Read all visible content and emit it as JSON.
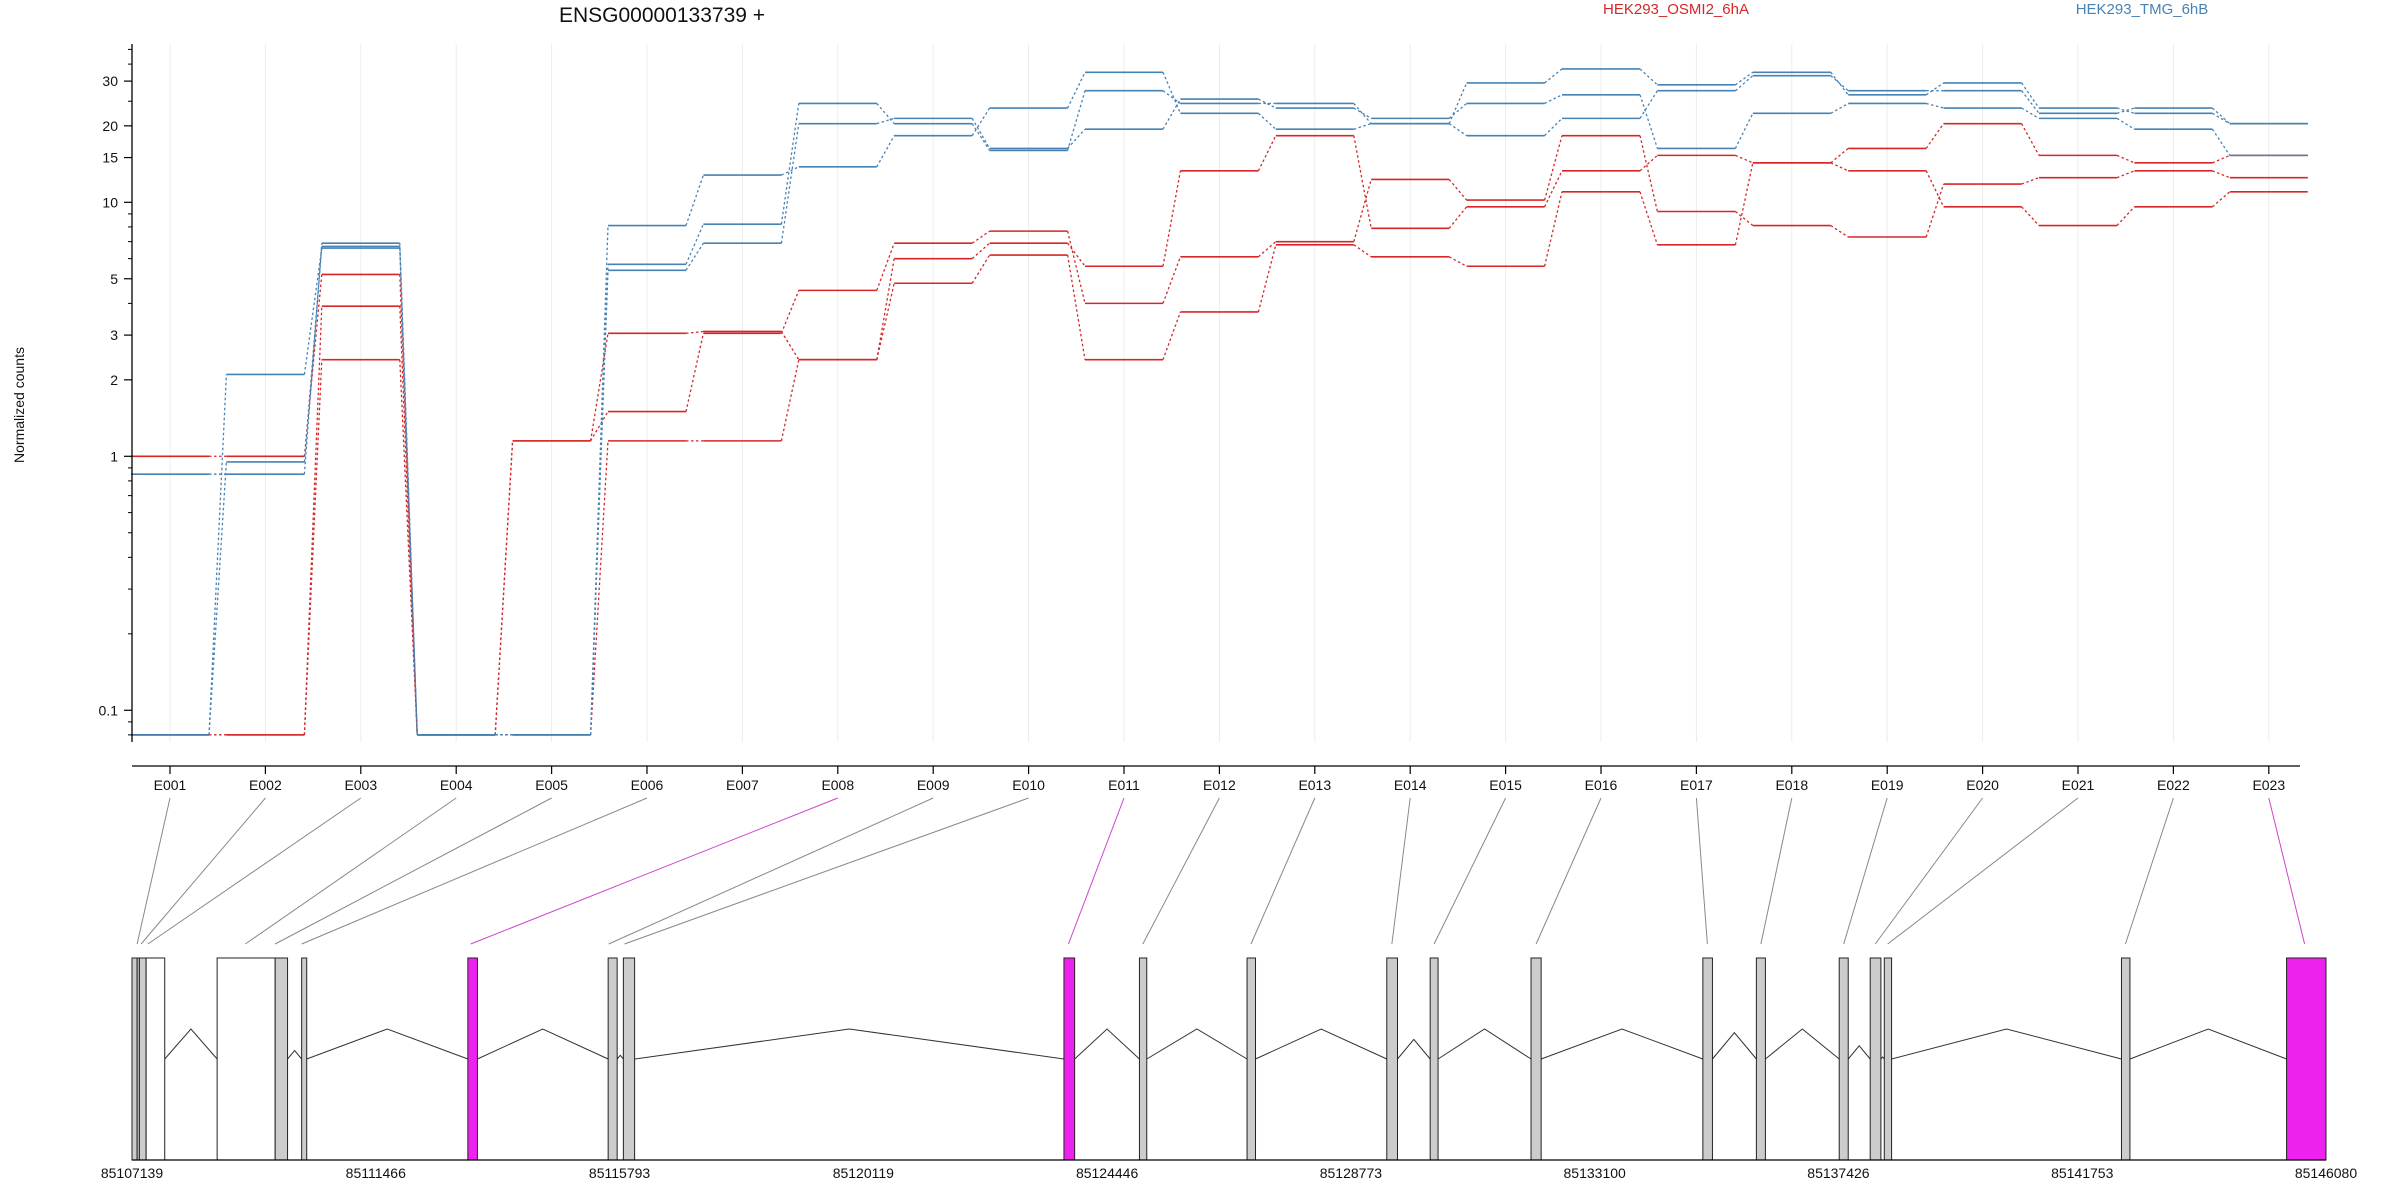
{
  "chart_data": {
    "type": "line",
    "title": "ENSG00000133739 +",
    "ylabel": "Normalized counts",
    "yscale": "log",
    "ylim": [
      0.075,
      42
    ],
    "yticks": [
      0.1,
      1,
      2,
      3,
      5,
      10,
      15,
      20,
      30
    ],
    "ytick_labels": [
      "0.1",
      "1",
      "2",
      "3",
      "5",
      "10",
      "15",
      "20",
      "30"
    ],
    "grid": true,
    "legend_placement": "top",
    "categories": [
      "E001",
      "E002",
      "E003",
      "E004",
      "E005",
      "E006",
      "E007",
      "E008",
      "E009",
      "E010",
      "E011",
      "E012",
      "E013",
      "E014",
      "E015",
      "E016",
      "E017",
      "E018",
      "E019",
      "E020",
      "E021",
      "E022",
      "E023"
    ],
    "series": [
      {
        "name": "HEK293_OSMI2_6hA",
        "color": "#d62728",
        "values": [
          1.0,
          1.0,
          5.2,
          0.08,
          1.15,
          1.5,
          3.05,
          4.5,
          6.9,
          7.7,
          4.0,
          6.1,
          7.0,
          12.3,
          10.2,
          18.3,
          9.2,
          8.1,
          7.3,
          11.8,
          12.5,
          13.3,
          12.5
        ]
      },
      {
        "name": "",
        "color": "#d62728",
        "values": [
          0.08,
          0.08,
          3.9,
          0.08,
          1.15,
          3.05,
          3.1,
          2.4,
          6.0,
          6.9,
          5.6,
          13.3,
          18.3,
          7.9,
          9.6,
          13.3,
          15.3,
          14.3,
          16.3,
          20.4,
          15.3,
          14.3,
          15.3
        ]
      },
      {
        "name": "",
        "color": "#d62728",
        "values": [
          0.08,
          0.08,
          2.4,
          0.08,
          0.08,
          1.15,
          1.15,
          2.4,
          4.8,
          6.2,
          2.4,
          3.7,
          6.8,
          6.1,
          5.6,
          11.0,
          6.8,
          14.3,
          13.3,
          9.6,
          8.1,
          9.6,
          11.0
        ]
      },
      {
        "name": "HEK293_TMG_6hB",
        "color": "#4682b4",
        "values": [
          0.85,
          0.85,
          6.9,
          0.08,
          0.08,
          5.4,
          6.9,
          20.4,
          21.4,
          16.3,
          19.4,
          25.5,
          23.5,
          21.4,
          24.5,
          26.5,
          16.3,
          22.4,
          24.5,
          23.5,
          21.4,
          19.4,
          15.3
        ]
      },
      {
        "name": "",
        "color": "#4682b4",
        "values": [
          0.08,
          0.95,
          6.7,
          0.08,
          0.08,
          5.7,
          8.2,
          24.5,
          20.4,
          16.0,
          27.5,
          24.5,
          24.5,
          20.4,
          18.3,
          21.4,
          27.5,
          31.5,
          27.5,
          27.5,
          22.4,
          23.5,
          20.4
        ]
      },
      {
        "name": "",
        "color": "#4682b4",
        "values": [
          0.08,
          2.1,
          6.6,
          0.08,
          0.08,
          8.1,
          12.8,
          13.8,
          18.3,
          23.5,
          32.5,
          22.4,
          19.4,
          20.4,
          29.5,
          33.5,
          29.0,
          32.5,
          26.5,
          29.5,
          23.5,
          22.4,
          20.4
        ]
      }
    ],
    "gene_model": {
      "coordinate_labels": [
        "85107139",
        "85111466",
        "85115793",
        "85120119",
        "85124446",
        "85128773",
        "85133100",
        "85137426",
        "85141753",
        "85146080"
      ],
      "coordinate_range": [
        85107139,
        85146080
      ],
      "exons": [
        {
          "start": 85107139,
          "end": 85107230,
          "fill": "#cccccc"
        },
        {
          "start": 85107230,
          "end": 85107270,
          "fill": "#cccccc"
        },
        {
          "start": 85107270,
          "end": 85107390,
          "fill": "#cccccc"
        },
        {
          "start": 85107390,
          "end": 85107720,
          "fill": "#ffffff"
        },
        {
          "start": 85108650,
          "end": 85109680,
          "fill": "#ffffff"
        },
        {
          "start": 85109680,
          "end": 85109900,
          "fill": "#cccccc"
        },
        {
          "start": 85110150,
          "end": 85110240,
          "fill": "#cccccc"
        },
        {
          "start": 85113100,
          "end": 85113270,
          "fill": "#ee22ee"
        },
        {
          "start": 85115590,
          "end": 85115750,
          "fill": "#cccccc"
        },
        {
          "start": 85115860,
          "end": 85116060,
          "fill": "#cccccc"
        },
        {
          "start": 85123680,
          "end": 85123870,
          "fill": "#ee22ee"
        },
        {
          "start": 85125020,
          "end": 85125150,
          "fill": "#cccccc"
        },
        {
          "start": 85126930,
          "end": 85127080,
          "fill": "#cccccc"
        },
        {
          "start": 85129410,
          "end": 85129600,
          "fill": "#cccccc"
        },
        {
          "start": 85130180,
          "end": 85130320,
          "fill": "#cccccc"
        },
        {
          "start": 85131970,
          "end": 85132150,
          "fill": "#cccccc"
        },
        {
          "start": 85135020,
          "end": 85135190,
          "fill": "#cccccc"
        },
        {
          "start": 85135970,
          "end": 85136130,
          "fill": "#cccccc"
        },
        {
          "start": 85137440,
          "end": 85137600,
          "fill": "#cccccc"
        },
        {
          "start": 85137990,
          "end": 85138180,
          "fill": "#cccccc"
        },
        {
          "start": 85138240,
          "end": 85138370,
          "fill": "#cccccc"
        },
        {
          "start": 85142450,
          "end": 85142600,
          "fill": "#cccccc"
        },
        {
          "start": 85145380,
          "end": 85146080,
          "fill": "#ee22ee"
        }
      ],
      "exon_links": [
        {
          "bin": "E001",
          "to": 85107230,
          "color": "#888888"
        },
        {
          "bin": "E002",
          "to": 85107300,
          "color": "#888888"
        },
        {
          "bin": "E003",
          "to": 85107420,
          "color": "#888888"
        },
        {
          "bin": "E004",
          "to": 85109150,
          "color": "#888888"
        },
        {
          "bin": "E005",
          "to": 85109680,
          "color": "#888888"
        },
        {
          "bin": "E006",
          "to": 85110150,
          "color": "#888888"
        },
        {
          "bin": "E008",
          "to": 85113150,
          "color": "#cc44cc"
        },
        {
          "bin": "E009",
          "to": 85115600,
          "color": "#888888"
        },
        {
          "bin": "E010",
          "to": 85115880,
          "color": "#888888"
        },
        {
          "bin": "E011",
          "to": 85123760,
          "color": "#cc44cc"
        },
        {
          "bin": "E012",
          "to": 85125080,
          "color": "#888888"
        },
        {
          "bin": "E013",
          "to": 85127000,
          "color": "#888888"
        },
        {
          "bin": "E014",
          "to": 85129500,
          "color": "#888888"
        },
        {
          "bin": "E015",
          "to": 85130250,
          "color": "#888888"
        },
        {
          "bin": "E016",
          "to": 85132060,
          "color": "#888888"
        },
        {
          "bin": "E017",
          "to": 85135100,
          "color": "#888888"
        },
        {
          "bin": "E018",
          "to": 85136050,
          "color": "#888888"
        },
        {
          "bin": "E019",
          "to": 85137520,
          "color": "#888888"
        },
        {
          "bin": "E020",
          "to": 85138080,
          "color": "#888888"
        },
        {
          "bin": "E021",
          "to": 85138300,
          "color": "#888888"
        },
        {
          "bin": "E022",
          "to": 85142520,
          "color": "#888888"
        },
        {
          "bin": "E023",
          "to": 85145700,
          "color": "#cc44cc"
        }
      ]
    }
  }
}
